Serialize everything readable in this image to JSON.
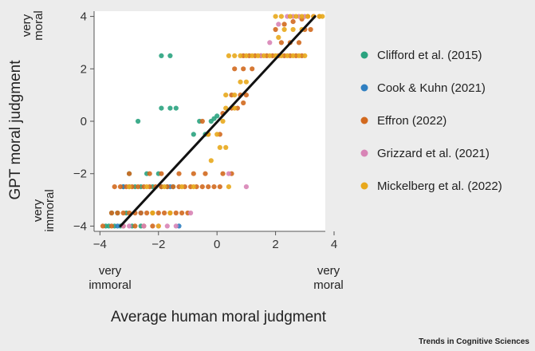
{
  "chart_data": {
    "type": "scatter",
    "xlabel": "Average human moral judgment",
    "ylabel": "GPT moral judgment",
    "xlim": [
      -4.2,
      3.7
    ],
    "ylim": [
      -4.2,
      4.2
    ],
    "x_ticks": [
      -4,
      -2,
      0,
      2,
      4
    ],
    "y_ticks": [
      -4,
      -2,
      0,
      2,
      4
    ],
    "grid": false,
    "legend_position": "right",
    "x_end_labels": {
      "low": [
        "very",
        "immoral"
      ],
      "high": [
        "very",
        "moral"
      ]
    },
    "y_end_labels": {
      "high": [
        "very",
        "moral"
      ],
      "low": [
        "very",
        "immoral"
      ]
    },
    "fit_line": {
      "x": [
        -3.3,
        3.35
      ],
      "y": [
        -4.0,
        4.0
      ]
    },
    "series": [
      {
        "name": "Clifford et al. (2015)",
        "color": "#2aa37f",
        "points": [
          [
            -1.9,
            2.5
          ],
          [
            -1.6,
            2.5
          ],
          [
            -1.9,
            0.5
          ],
          [
            -1.6,
            0.5
          ],
          [
            -1.4,
            0.5
          ],
          [
            -2.7,
            0.0
          ],
          [
            -0.6,
            0.0
          ],
          [
            -0.2,
            0.0
          ],
          [
            -0.1,
            0.1
          ],
          [
            0.0,
            0.2
          ],
          [
            -0.4,
            -0.5
          ],
          [
            -0.8,
            -0.5
          ],
          [
            -3.0,
            -2.0
          ],
          [
            -2.4,
            -2.0
          ],
          [
            -2.0,
            -2.0
          ],
          [
            -3.2,
            -2.5
          ],
          [
            -3.0,
            -2.5
          ],
          [
            -2.8,
            -2.5
          ],
          [
            -2.6,
            -2.5
          ],
          [
            -2.2,
            -2.5
          ],
          [
            -1.9,
            -2.5
          ],
          [
            -1.7,
            -2.5
          ],
          [
            -1.5,
            -2.5
          ],
          [
            -3.6,
            -3.5
          ],
          [
            -3.4,
            -3.5
          ],
          [
            -3.1,
            -3.5
          ],
          [
            -3.8,
            -4.0
          ],
          [
            -3.7,
            -4.0
          ],
          [
            -3.5,
            -4.0
          ],
          [
            -3.3,
            -4.0
          ],
          [
            -2.9,
            -4.0
          ],
          [
            -2.6,
            -4.0
          ]
        ]
      },
      {
        "name": "Cook & Kuhn (2021)",
        "color": "#2f7fc1",
        "points": [
          [
            -3.4,
            -4.0
          ],
          [
            -1.3,
            -4.0
          ],
          [
            -3.2,
            -2.5
          ],
          [
            -2.6,
            -3.5
          ],
          [
            -1.6,
            -2.5
          ]
        ]
      },
      {
        "name": "Effron (2022)",
        "color": "#d2691e",
        "points": [
          [
            -3.5,
            -2.5
          ],
          [
            -3.3,
            -2.5
          ],
          [
            -3.1,
            -2.5
          ],
          [
            -2.9,
            -2.5
          ],
          [
            -2.7,
            -2.5
          ],
          [
            -2.5,
            -2.5
          ],
          [
            -2.3,
            -2.5
          ],
          [
            -2.1,
            -2.5
          ],
          [
            -1.9,
            -2.5
          ],
          [
            -1.7,
            -2.5
          ],
          [
            -1.5,
            -2.5
          ],
          [
            -1.3,
            -2.5
          ],
          [
            -1.1,
            -2.5
          ],
          [
            -0.9,
            -2.5
          ],
          [
            -0.7,
            -2.5
          ],
          [
            -0.5,
            -2.5
          ],
          [
            -0.3,
            -2.5
          ],
          [
            -0.1,
            -2.5
          ],
          [
            0.1,
            -2.5
          ],
          [
            -3.6,
            -3.5
          ],
          [
            -3.4,
            -3.5
          ],
          [
            -3.2,
            -3.5
          ],
          [
            -3.0,
            -3.5
          ],
          [
            -2.8,
            -3.5
          ],
          [
            -2.6,
            -3.5
          ],
          [
            -2.4,
            -3.5
          ],
          [
            -2.2,
            -3.5
          ],
          [
            -2.0,
            -3.5
          ],
          [
            -1.8,
            -3.5
          ],
          [
            -1.6,
            -3.5
          ],
          [
            -1.4,
            -3.5
          ],
          [
            -1.2,
            -3.5
          ],
          [
            -1.0,
            -3.5
          ],
          [
            -3.9,
            -4.0
          ],
          [
            -3.6,
            -4.0
          ],
          [
            -3.2,
            -4.0
          ],
          [
            -2.8,
            -4.0
          ],
          [
            -2.5,
            -4.0
          ],
          [
            -2.2,
            -4.0
          ],
          [
            -3.0,
            -2.0
          ],
          [
            -2.3,
            -2.0
          ],
          [
            -1.9,
            -2.0
          ],
          [
            -1.3,
            -2.0
          ],
          [
            -0.8,
            -2.0
          ],
          [
            -0.4,
            -2.0
          ],
          [
            0.2,
            -2.0
          ],
          [
            0.5,
            -2.0
          ],
          [
            -0.5,
            0.0
          ],
          [
            -0.3,
            -0.5
          ],
          [
            0.1,
            -0.5
          ],
          [
            0.2,
            0.3
          ],
          [
            0.5,
            0.5
          ],
          [
            0.7,
            0.5
          ],
          [
            0.9,
            0.7
          ],
          [
            0.5,
            1.0
          ],
          [
            0.8,
            1.0
          ],
          [
            1.0,
            1.0
          ],
          [
            0.6,
            2.0
          ],
          [
            0.9,
            2.0
          ],
          [
            1.2,
            2.0
          ],
          [
            0.9,
            2.5
          ],
          [
            1.1,
            2.5
          ],
          [
            1.3,
            2.5
          ],
          [
            1.5,
            2.5
          ],
          [
            1.7,
            2.5
          ],
          [
            1.9,
            2.5
          ],
          [
            2.1,
            2.5
          ],
          [
            2.3,
            2.5
          ],
          [
            2.5,
            2.5
          ],
          [
            2.7,
            2.5
          ],
          [
            2.9,
            2.5
          ],
          [
            2.2,
            3.0
          ],
          [
            2.5,
            3.0
          ],
          [
            2.8,
            3.0
          ],
          [
            3.0,
            3.5
          ],
          [
            3.2,
            3.5
          ],
          [
            2.3,
            3.7
          ],
          [
            2.6,
            3.8
          ],
          [
            2.9,
            3.9
          ],
          [
            3.1,
            4.0
          ],
          [
            3.3,
            4.0
          ],
          [
            3.5,
            4.0
          ],
          [
            2.0,
            3.5
          ]
        ]
      },
      {
        "name": "Grizzard et al. (2021)",
        "color": "#d884b6",
        "points": [
          [
            -3.2,
            -4.0
          ],
          [
            -3.0,
            -4.0
          ],
          [
            -2.5,
            -4.0
          ],
          [
            -2.0,
            -4.0
          ],
          [
            -1.7,
            -4.0
          ],
          [
            -1.4,
            -4.0
          ],
          [
            -0.9,
            -3.5
          ],
          [
            1.0,
            -2.5
          ],
          [
            0.4,
            -2.0
          ],
          [
            2.4,
            4.0
          ],
          [
            2.6,
            4.0
          ],
          [
            2.8,
            4.0
          ],
          [
            3.0,
            4.0
          ],
          [
            3.3,
            4.0
          ],
          [
            2.1,
            3.7
          ],
          [
            1.5,
            2.5
          ],
          [
            1.8,
            3.0
          ]
        ]
      },
      {
        "name": "Mickelberg et al. (2022)",
        "color": "#e8a81c",
        "points": [
          [
            0.4,
            2.5
          ],
          [
            0.6,
            2.5
          ],
          [
            0.8,
            2.5
          ],
          [
            1.0,
            2.5
          ],
          [
            1.2,
            2.5
          ],
          [
            1.4,
            2.5
          ],
          [
            1.6,
            2.5
          ],
          [
            1.8,
            2.5
          ],
          [
            2.0,
            2.5
          ],
          [
            2.2,
            2.5
          ],
          [
            2.4,
            2.5
          ],
          [
            2.6,
            2.5
          ],
          [
            2.8,
            2.5
          ],
          [
            3.0,
            2.5
          ],
          [
            2.0,
            4.0
          ],
          [
            2.2,
            4.0
          ],
          [
            2.5,
            4.0
          ],
          [
            2.7,
            4.0
          ],
          [
            2.9,
            4.0
          ],
          [
            3.1,
            4.0
          ],
          [
            3.3,
            4.0
          ],
          [
            3.5,
            4.0
          ],
          [
            3.6,
            4.0
          ],
          [
            2.3,
            3.5
          ],
          [
            2.6,
            3.5
          ],
          [
            2.9,
            3.5
          ],
          [
            2.1,
            3.2
          ],
          [
            0.3,
            1.0
          ],
          [
            0.6,
            1.0
          ],
          [
            0.8,
            1.5
          ],
          [
            1.0,
            1.5
          ],
          [
            0.3,
            0.5
          ],
          [
            0.6,
            0.5
          ],
          [
            0.2,
            0.0
          ],
          [
            -0.3,
            -0.5
          ],
          [
            0.0,
            -0.5
          ],
          [
            0.1,
            -1.0
          ],
          [
            0.3,
            -1.0
          ],
          [
            -0.2,
            -1.5
          ],
          [
            0.4,
            -2.5
          ],
          [
            -3.0,
            -2.5
          ],
          [
            -2.4,
            -2.5
          ],
          [
            -1.8,
            -2.5
          ],
          [
            -1.2,
            -2.5
          ],
          [
            -0.8,
            -2.5
          ],
          [
            -2.2,
            -3.5
          ],
          [
            -1.6,
            -3.5
          ],
          [
            -2.0,
            -4.0
          ]
        ]
      }
    ]
  },
  "source_label": "Trends in Cognitive Sciences"
}
